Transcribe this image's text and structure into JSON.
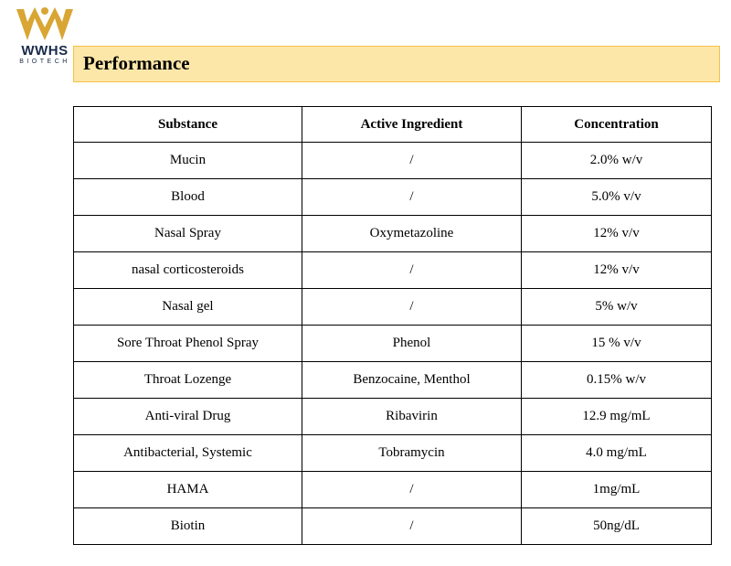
{
  "logo": {
    "brand": "WWHS",
    "subtitle": "BIOTECH",
    "color_primary": "#d9a533"
  },
  "banner": {
    "title": "Performance",
    "bg_color": "#fde7a8"
  },
  "table": {
    "headers": [
      "Substance",
      "Active Ingredient",
      "Concentration"
    ],
    "rows": [
      [
        "Mucin",
        "/",
        "2.0% w/v"
      ],
      [
        "Blood",
        "/",
        "5.0% v/v"
      ],
      [
        "Nasal Spray",
        "Oxymetazoline",
        "12% v/v"
      ],
      [
        "nasal corticosteroids",
        "/",
        "12% v/v"
      ],
      [
        "Nasal gel",
        "/",
        "5% w/v"
      ],
      [
        "Sore Throat Phenol Spray",
        "Phenol",
        "15 % v/v"
      ],
      [
        "Throat Lozenge",
        "Benzocaine, Menthol",
        "0.15% w/v"
      ],
      [
        "Anti-viral Drug",
        "Ribavirin",
        "12.9 mg/mL"
      ],
      [
        "Antibacterial, Systemic",
        "Tobramycin",
        "4.0 mg/mL"
      ],
      [
        "HAMA",
        "/",
        "1mg/mL"
      ],
      [
        "Biotin",
        "/",
        "50ng/dL"
      ]
    ]
  }
}
